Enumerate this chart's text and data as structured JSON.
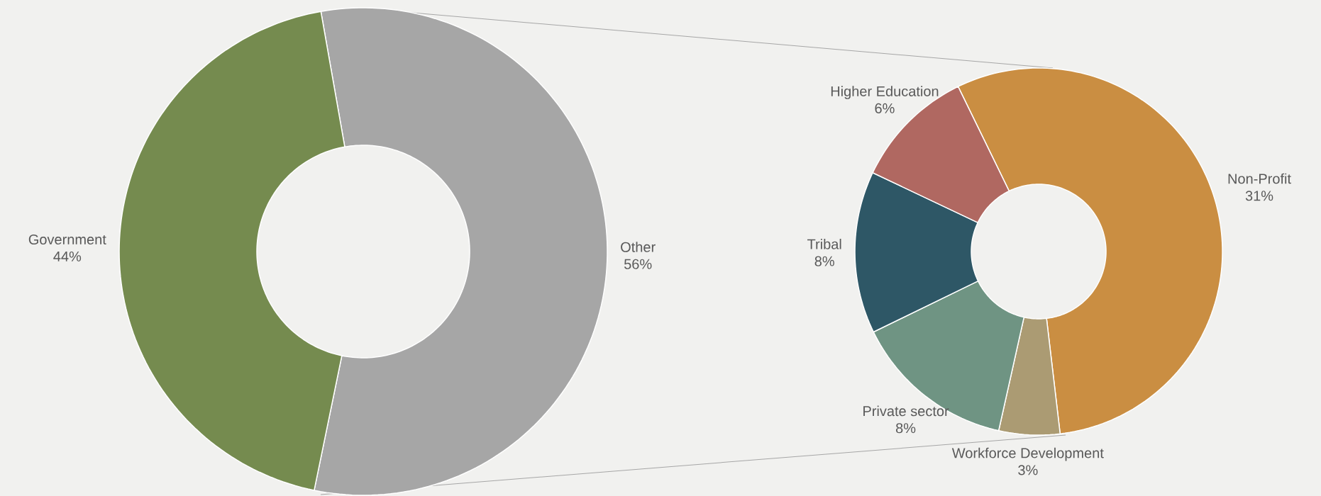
{
  "chart_data": [
    {
      "type": "donut",
      "categories": [
        "Other",
        "Government"
      ],
      "values": [
        56,
        44
      ],
      "colors": [
        "#a6a6a6",
        "#758b4f"
      ],
      "value_labels": [
        "56%",
        "44%"
      ]
    },
    {
      "type": "donut",
      "categories": [
        "Non-Profit",
        "Workforce Development",
        "Private sector",
        "Tribal",
        "Higher Education"
      ],
      "values": [
        31,
        3,
        8,
        8,
        6
      ],
      "colors": [
        "#ca8e42",
        "#ab9b73",
        "#6f9483",
        "#2e5766",
        "#b06861"
      ],
      "value_labels": [
        "31%",
        "3%",
        "8%",
        "8%",
        "6%"
      ]
    }
  ]
}
